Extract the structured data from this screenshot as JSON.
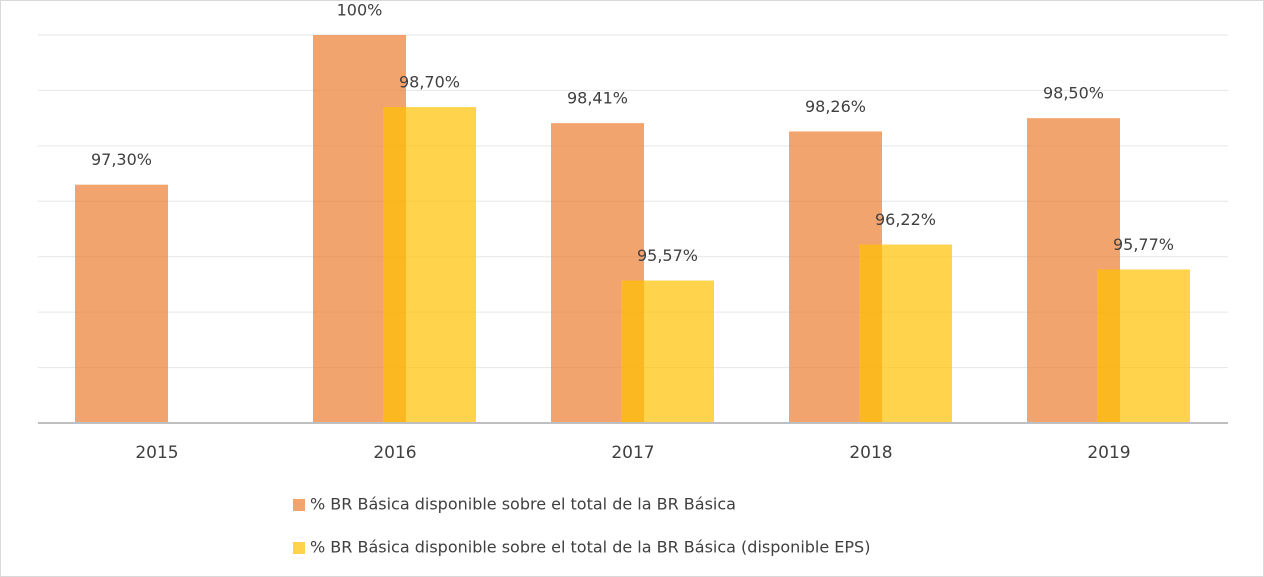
{
  "chart_data": {
    "type": "bar",
    "categories": [
      "2015",
      "2016",
      "2017",
      "2018",
      "2019"
    ],
    "series": [
      {
        "name": "% BR Básica disponible sobre el total de la BR Básica",
        "color": "#ed7d31",
        "values": [
          97.3,
          100,
          98.41,
          98.26,
          98.5
        ],
        "value_labels": [
          "97,30%",
          "100%",
          "98,41%",
          "98,26%",
          "98,50%"
        ]
      },
      {
        "name": "% BR Básica disponible sobre el total de la BR Básica (disponible EPS)",
        "color": "#ffc000",
        "values": [
          null,
          98.7,
          95.57,
          96.22,
          95.77
        ],
        "value_labels": [
          null,
          "98,70%",
          "95,57%",
          "96,22%",
          "95,77%"
        ]
      }
    ],
    "opacity": 0.7,
    "ylim": [
      93,
      100
    ],
    "yticks": [
      93,
      94,
      95,
      96,
      97,
      98,
      99,
      100
    ],
    "show_ytick_labels": false,
    "grid": true,
    "legend": "bottom"
  }
}
